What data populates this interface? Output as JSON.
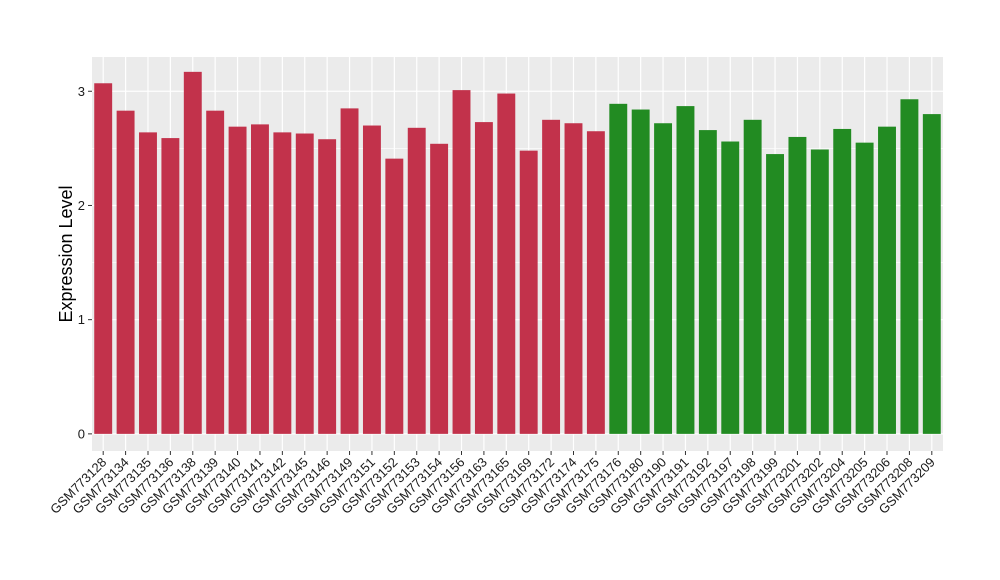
{
  "chart_data": {
    "type": "bar",
    "title": "",
    "xlabel": "",
    "ylabel": "Expression Level",
    "ylim": [
      -0.15,
      3.3
    ],
    "yticks": [
      0,
      1,
      2,
      3
    ],
    "grid": true,
    "categories": [
      "GSM773128",
      "GSM773134",
      "GSM773135",
      "GSM773136",
      "GSM773138",
      "GSM773139",
      "GSM773140",
      "GSM773141",
      "GSM773142",
      "GSM773145",
      "GSM773146",
      "GSM773149",
      "GSM773151",
      "GSM773152",
      "GSM773153",
      "GSM773154",
      "GSM773156",
      "GSM773163",
      "GSM773165",
      "GSM773169",
      "GSM773172",
      "GSM773174",
      "GSM773175",
      "GSM773176",
      "GSM773180",
      "GSM773190",
      "GSM773191",
      "GSM773192",
      "GSM773197",
      "GSM773198",
      "GSM773199",
      "GSM773201",
      "GSM773202",
      "GSM773204",
      "GSM773205",
      "GSM773206",
      "GSM773208",
      "GSM773209"
    ],
    "values": [
      3.07,
      2.83,
      2.64,
      2.59,
      3.17,
      2.83,
      2.69,
      2.71,
      2.64,
      2.63,
      2.58,
      2.85,
      2.7,
      2.41,
      2.68,
      2.54,
      3.01,
      2.73,
      2.98,
      2.48,
      2.75,
      2.72,
      2.65,
      2.89,
      2.84,
      2.72,
      2.87,
      2.66,
      2.56,
      2.75,
      2.45,
      2.6,
      2.49,
      2.67,
      2.55,
      2.69,
      2.93,
      2.8
    ],
    "groups": [
      0,
      0,
      0,
      0,
      0,
      0,
      0,
      0,
      0,
      0,
      0,
      0,
      0,
      0,
      0,
      0,
      0,
      0,
      0,
      0,
      0,
      0,
      0,
      1,
      1,
      1,
      1,
      1,
      1,
      1,
      1,
      1,
      1,
      1,
      1,
      1,
      1,
      1
    ],
    "colors": {
      "group_0": "#c2324b",
      "group_1": "#228b22",
      "panel_background": "#ebebeb",
      "grid": "#ffffff"
    }
  }
}
